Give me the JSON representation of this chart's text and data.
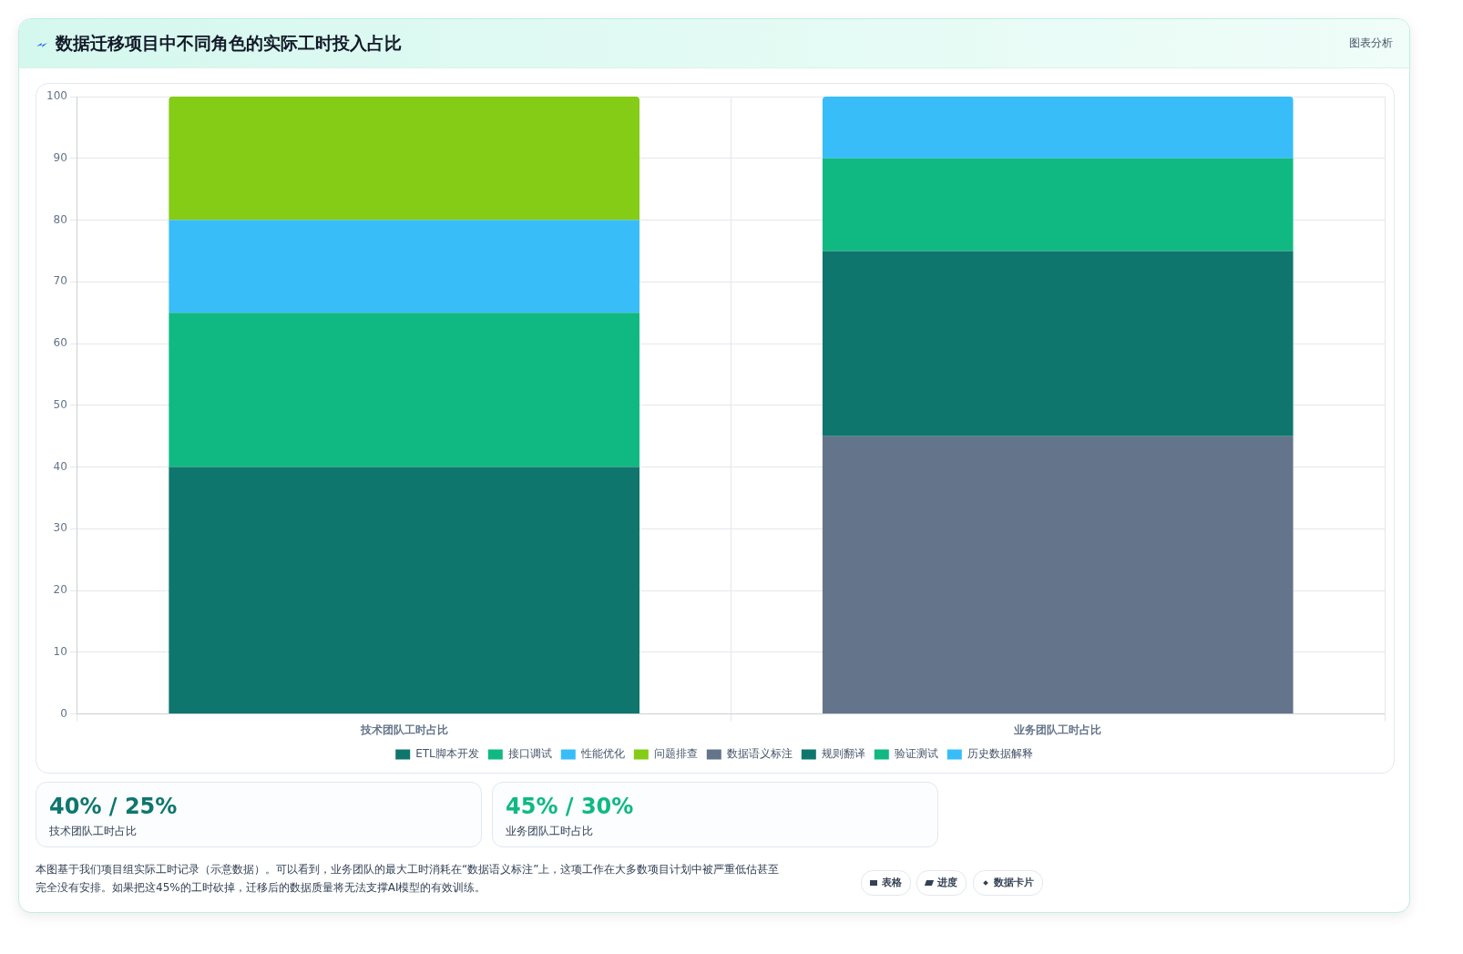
{
  "chart_data": {
    "type": "bar",
    "title": "数据迁移项目中不同角色的实际工时投入占比",
    "categories": [
      "技术团队工时占比",
      "业务团队工时占比"
    ],
    "stacked": true,
    "series": [
      {
        "name": "ETL脚本开发",
        "color": "#0f766e",
        "values": [
          40,
          null
        ]
      },
      {
        "name": "接口调试",
        "color": "#10b981",
        "values": [
          25,
          null
        ]
      },
      {
        "name": "性能优化",
        "color": "#38bdf8",
        "values": [
          15,
          null
        ]
      },
      {
        "name": "问题排查",
        "color": "#84cc16",
        "values": [
          20,
          null
        ]
      },
      {
        "name": "数据语义标注",
        "color": "#64748b",
        "values": [
          null,
          45
        ]
      },
      {
        "name": "规则翻译",
        "color": "#0f766e",
        "values": [
          null,
          30
        ]
      },
      {
        "name": "验证测试",
        "color": "#10b981",
        "values": [
          null,
          15
        ]
      },
      {
        "name": "历史数据解释",
        "color": "#38bdf8",
        "values": [
          null,
          10
        ]
      }
    ],
    "ylim": [
      0,
      100
    ],
    "yticks": [
      0,
      10,
      20,
      30,
      40,
      50,
      60,
      70,
      80,
      90,
      100
    ],
    "grid": true,
    "legend": "bottom",
    "annotations": [
      "图表分析",
      "40% / 25%",
      "技术团队工时占比",
      "45% / 30%",
      "业务团队工时占比",
      "本图基于我们项目组实际工时记录（示意数据）。可以看到，业务团队的最大工时消耗在“数据语义标注”上，这项工作在大多数项目计划中被严重低估甚至完全没有安排。如果把这45%的工时砍掉，迁移后的数据质量将无法支撑AI模型的有效训练。",
      "表格",
      "进度",
      "数据卡片"
    ]
  }
}
